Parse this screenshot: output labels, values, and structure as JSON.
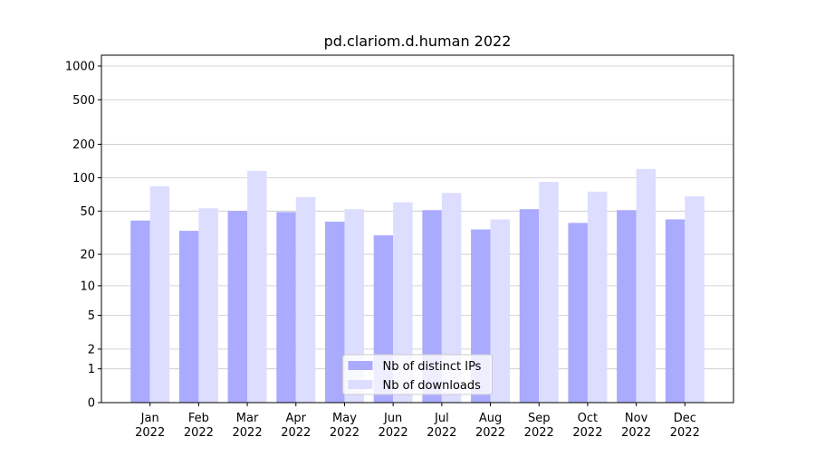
{
  "chart_data": {
    "type": "bar",
    "title": "pd.clariom.d.human 2022",
    "categories": [
      [
        "Jan",
        "2022"
      ],
      [
        "Feb",
        "2022"
      ],
      [
        "Mar",
        "2022"
      ],
      [
        "Apr",
        "2022"
      ],
      [
        "May",
        "2022"
      ],
      [
        "Jun",
        "2022"
      ],
      [
        "Jul",
        "2022"
      ],
      [
        "Aug",
        "2022"
      ],
      [
        "Sep",
        "2022"
      ],
      [
        "Oct",
        "2022"
      ],
      [
        "Nov",
        "2022"
      ],
      [
        "Dec",
        "2022"
      ]
    ],
    "series": [
      {
        "name": "Nb of distinct IPs",
        "color": "#aaaaff",
        "values": [
          41,
          33,
          50,
          49,
          40,
          30,
          51,
          34,
          52,
          39,
          51,
          42
        ]
      },
      {
        "name": "Nb of downloads",
        "color": "#ddddff",
        "values": [
          84,
          53,
          115,
          67,
          52,
          60,
          73,
          42,
          92,
          75,
          120,
          68
        ]
      }
    ],
    "yscale": "log1p",
    "ylim": [
      0,
      1250
    ],
    "yticks": [
      0,
      1,
      2,
      5,
      10,
      20,
      50,
      100,
      200,
      500,
      1000
    ],
    "grid": true,
    "legend": "lower center"
  }
}
